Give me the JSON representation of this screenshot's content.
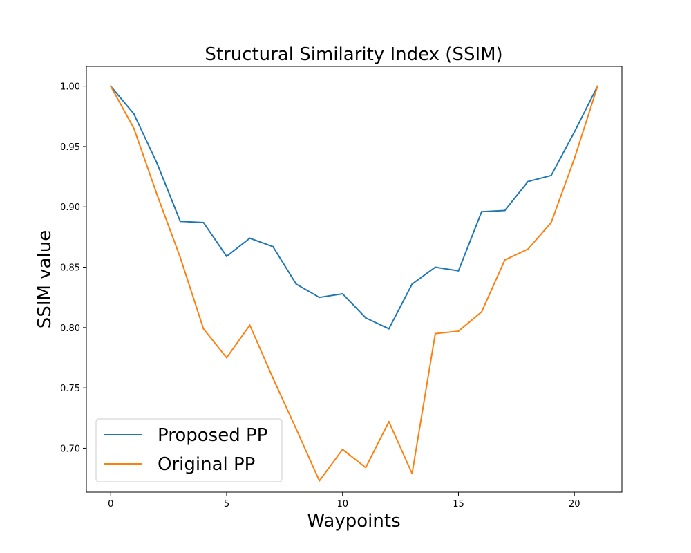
{
  "chart_data": {
    "type": "line",
    "title": "Structural Similarity Index (SSIM)",
    "xlabel": "Waypoints",
    "ylabel": "SSIM value",
    "xlim": [
      -1.05,
      22.05
    ],
    "ylim": [
      0.6636,
      1.0164
    ],
    "xticks": [
      0,
      5,
      10,
      15,
      20
    ],
    "xtick_labels": [
      "0",
      "5",
      "10",
      "15",
      "20"
    ],
    "yticks": [
      0.7,
      0.75,
      0.8,
      0.85,
      0.9,
      0.95,
      1.0
    ],
    "ytick_labels": [
      "0.70",
      "0.75",
      "0.80",
      "0.85",
      "0.90",
      "0.95",
      "1.00"
    ],
    "grid": false,
    "legend_position": "lower-left",
    "x": [
      0,
      1,
      2,
      3,
      4,
      5,
      6,
      7,
      8,
      9,
      10,
      11,
      12,
      13,
      14,
      15,
      16,
      17,
      18,
      19,
      20,
      21
    ],
    "series": [
      {
        "name": "Proposed PP",
        "color": "#1f77b4",
        "values": [
          1.0,
          0.977,
          0.936,
          0.888,
          0.887,
          0.859,
          0.874,
          0.867,
          0.836,
          0.825,
          0.828,
          0.808,
          0.799,
          0.836,
          0.85,
          0.847,
          0.896,
          0.897,
          0.921,
          0.926,
          0.962,
          1.0
        ]
      },
      {
        "name": "Original PP",
        "color": "#ff7f0e",
        "values": [
          1.0,
          0.965,
          0.91,
          0.858,
          0.799,
          0.775,
          0.802,
          0.758,
          0.716,
          0.673,
          0.699,
          0.684,
          0.722,
          0.679,
          0.795,
          0.797,
          0.813,
          0.856,
          0.865,
          0.887,
          0.94,
          1.0
        ]
      }
    ]
  }
}
